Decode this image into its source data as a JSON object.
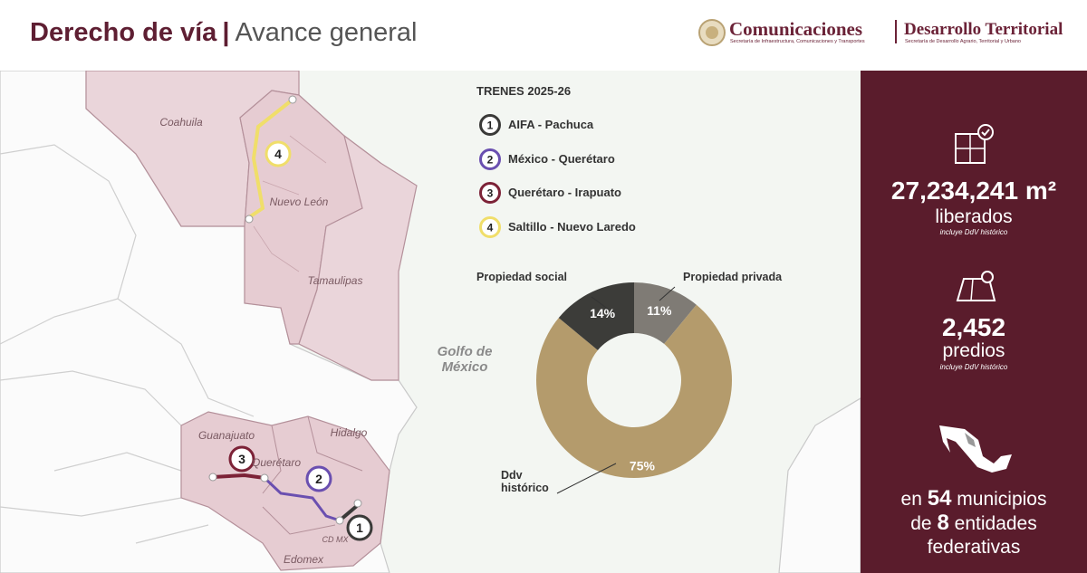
{
  "header": {
    "title": "Derecho de vía",
    "separator": "|",
    "subtitle": "Avance general",
    "logo_main": "Comunicaciones",
    "logo_main_sub": "Secretaría de Infraestructura, Comunicaciones y Transportes",
    "logo_second": "Desarrollo Territorial",
    "logo_second_sub": "Secretaría de Desarrollo Agrario, Territorial y Urbano"
  },
  "map": {
    "labels": [
      "Coahuila",
      "Nuevo León",
      "Tamaulipas",
      "Golfo de México",
      "Guanajuato",
      "Querétaro",
      "Hidalgo",
      "Edomex",
      "CD MX"
    ]
  },
  "trains": {
    "title": "TRENES 2025-26",
    "items": [
      {
        "number": "1",
        "name": "AIFA - Pachuca",
        "color": "#3a3a38"
      },
      {
        "number": "2",
        "name": "México - Querétaro",
        "color": "#6a4fb0"
      },
      {
        "number": "3",
        "name": "Querétaro - Irapuato",
        "color": "#7c2237"
      },
      {
        "number": "4",
        "name": "Saltillo - Nuevo Laredo",
        "color": "#f0de6a"
      }
    ]
  },
  "chart_data": {
    "type": "pie",
    "donut": true,
    "categories": [
      "Propiedad privada",
      "Ddv histórico",
      "Propiedad social"
    ],
    "values": [
      11,
      75,
      14
    ],
    "value_labels": [
      "11%",
      "75%",
      "14%"
    ],
    "colors": [
      "#7f7b75",
      "#b49b6c",
      "#3c3c39"
    ]
  },
  "stats": [
    {
      "value": "27,234,241 m²",
      "label": "liberados",
      "note": "incluye DdV histórico"
    },
    {
      "value": "2,452",
      "label": "predios",
      "note": "incluye DdV histórico"
    },
    {
      "parts": [
        "en",
        "54",
        "municipios",
        "de",
        "8",
        "entidades",
        "federativas"
      ]
    }
  ]
}
